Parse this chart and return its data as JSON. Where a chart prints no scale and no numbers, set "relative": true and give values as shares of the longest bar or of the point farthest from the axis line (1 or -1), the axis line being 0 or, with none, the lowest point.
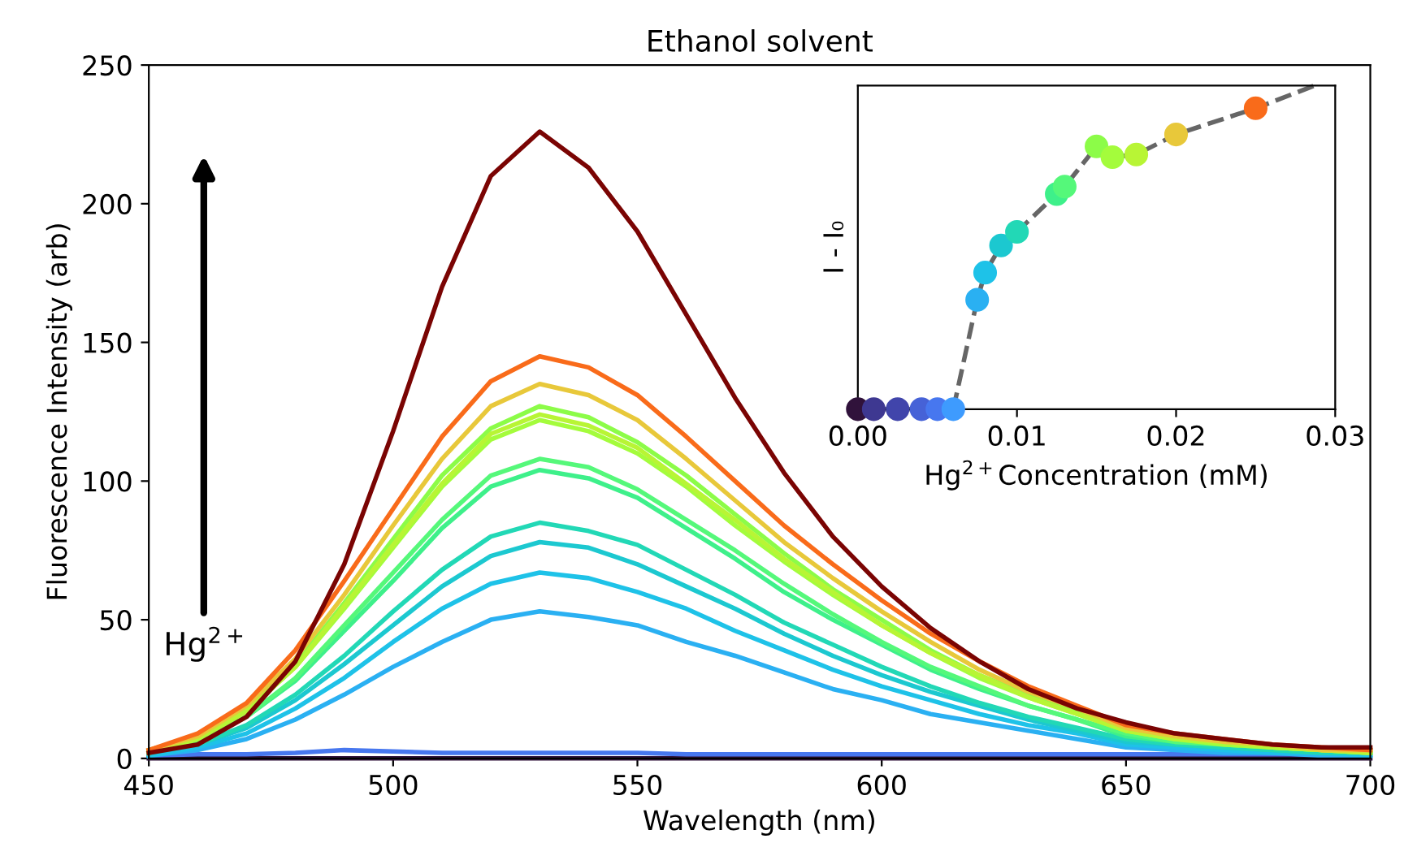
{
  "chart_data": [
    {
      "type": "line",
      "title": "Ethanol solvent",
      "xlabel": "Wavelength (nm)",
      "ylabel": "Fluorescence Intensity (arb)",
      "x": [
        450,
        460,
        470,
        480,
        490,
        500,
        510,
        520,
        530,
        540,
        550,
        560,
        570,
        580,
        590,
        600,
        610,
        620,
        630,
        640,
        650,
        660,
        670,
        680,
        690,
        700
      ],
      "xlim": [
        450,
        700
      ],
      "xticks": [
        450,
        500,
        550,
        600,
        650,
        700
      ],
      "ylim": [
        0,
        250
      ],
      "yticks": [
        0,
        50,
        100,
        150,
        200,
        250
      ],
      "grid": false,
      "legend": false,
      "annotations": [
        "Hg$^{2+}$"
      ],
      "series": [
        {
          "color": "#30123b",
          "values": [
            0,
            0,
            0,
            0,
            0,
            0,
            0,
            0,
            0,
            0,
            0,
            0,
            0,
            0,
            0,
            0,
            0,
            0,
            0,
            0,
            0,
            0,
            0,
            0,
            0,
            0
          ]
        },
        {
          "color": "#4777ef",
          "values": [
            1,
            1.5,
            1.5,
            2,
            3,
            2.5,
            2,
            2,
            2,
            2,
            2,
            1.5,
            1.5,
            1.5,
            1.5,
            1.5,
            1.5,
            1.5,
            1.5,
            1.5,
            1.5,
            1.5,
            1.5,
            1.5,
            1.5,
            1.5
          ]
        },
        {
          "color": "#2ab0f2",
          "values": [
            1,
            3,
            7,
            14,
            23,
            33,
            42,
            50,
            53,
            51,
            48,
            42,
            37,
            31,
            25,
            21,
            16,
            13,
            10,
            7,
            4,
            3,
            2,
            2,
            1,
            1
          ]
        },
        {
          "color": "#1ec2e8",
          "values": [
            1,
            4,
            9,
            18,
            29,
            42,
            54,
            63,
            67,
            65,
            60,
            54,
            46,
            39,
            32,
            26,
            21,
            16,
            12,
            9,
            5,
            4,
            3,
            2,
            2,
            1
          ]
        },
        {
          "color": "#1cc8d0",
          "values": [
            2,
            5,
            11,
            21,
            34,
            48,
            62,
            73,
            78,
            76,
            70,
            62,
            54,
            45,
            37,
            30,
            24,
            19,
            14,
            10,
            6,
            5,
            4,
            3,
            2,
            2
          ]
        },
        {
          "color": "#22d8b6",
          "values": [
            2,
            5,
            12,
            23,
            37,
            53,
            68,
            80,
            85,
            82,
            77,
            68,
            59,
            49,
            41,
            33,
            26,
            20,
            15,
            11,
            7,
            5,
            4,
            3,
            2,
            2
          ]
        },
        {
          "color": "#3ef08a",
          "values": [
            2,
            6,
            15,
            28,
            46,
            64,
            83,
            98,
            104,
            101,
            94,
            83,
            72,
            60,
            50,
            41,
            32,
            25,
            19,
            14,
            8,
            6,
            5,
            4,
            3,
            2
          ]
        },
        {
          "color": "#55f87a",
          "values": [
            2,
            6,
            15,
            29,
            48,
            67,
            86,
            102,
            108,
            105,
            97,
            86,
            75,
            63,
            52,
            42,
            33,
            26,
            19,
            14,
            9,
            6,
            5,
            4,
            3,
            2
          ]
        },
        {
          "color": "#8cfc48",
          "values": [
            3,
            8,
            18,
            34,
            56,
            79,
            102,
            119,
            127,
            123,
            114,
            102,
            88,
            74,
            61,
            50,
            39,
            30,
            23,
            17,
            10,
            8,
            6,
            4,
            3,
            3
          ]
        },
        {
          "color": "#a4fc3c",
          "values": [
            2,
            7,
            17,
            33,
            54,
            76,
            98,
            115,
            122,
            118,
            110,
            98,
            84,
            71,
            59,
            48,
            38,
            29,
            22,
            16,
            10,
            7,
            5,
            4,
            3,
            2
          ]
        },
        {
          "color": "#b8f535",
          "values": [
            2,
            7,
            17,
            33,
            55,
            77,
            99,
            117,
            124,
            120,
            112,
            99,
            86,
            72,
            60,
            48,
            38,
            30,
            22,
            16,
            10,
            7,
            6,
            4,
            3,
            2
          ]
        },
        {
          "color": "#e8c83a",
          "values": [
            3,
            8,
            19,
            36,
            59,
            84,
            108,
            127,
            135,
            131,
            122,
            108,
            93,
            78,
            65,
            53,
            42,
            32,
            24,
            18,
            11,
            8,
            6,
            5,
            3,
            3
          ]
        },
        {
          "color": "#f96b1a",
          "values": [
            3,
            9,
            20,
            39,
            64,
            90,
            116,
            136,
            145,
            141,
            131,
            116,
            100,
            84,
            70,
            57,
            45,
            35,
            26,
            19,
            12,
            9,
            7,
            5,
            4,
            3
          ]
        },
        {
          "color": "#7a0403",
          "values": [
            2,
            5,
            15,
            35,
            70,
            118,
            170,
            210,
            226,
            213,
            190,
            160,
            130,
            103,
            80,
            62,
            47,
            35,
            25,
            18,
            13,
            9,
            7,
            5,
            4,
            4
          ]
        }
      ]
    },
    {
      "type": "scatter",
      "xlabel": "Hg$^{2+}$Concentration (mM)",
      "ylabel": "I - I₀",
      "relative": true,
      "xlim": [
        0,
        0.03
      ],
      "xticks": [
        {
          "value": 0,
          "label": "0.00"
        },
        {
          "value": 0.01,
          "label": "0.01"
        },
        {
          "value": 0.02,
          "label": "0.02"
        },
        {
          "value": 0.03,
          "label": "0.03"
        }
      ],
      "grid": false,
      "legend": false,
      "series": [
        {
          "type": "line",
          "line_style": "dashed",
          "color": "#666666",
          "x": [
            0,
            0.001,
            0.0025,
            0.004,
            0.005,
            0.006,
            0.0075,
            0.008,
            0.009,
            0.01,
            0.0125,
            0.013,
            0.015,
            0.016,
            0.0175,
            0.02,
            0.025,
            0.0287
          ],
          "values": [
            0,
            0,
            0,
            0,
            0,
            0,
            0.338,
            0.422,
            0.506,
            0.548,
            0.665,
            0.688,
            0.812,
            0.779,
            0.787,
            0.849,
            0.93,
            1.0
          ]
        },
        {
          "type": "scatter",
          "marker": "circle",
          "x": [
            0,
            0.001,
            0.0025,
            0.004,
            0.005,
            0.006,
            0.0075,
            0.008,
            0.009,
            0.01,
            0.0125,
            0.013,
            0.015,
            0.016,
            0.0175,
            0.02,
            0.025
          ],
          "values": [
            0,
            0,
            0,
            0,
            0,
            0,
            0.338,
            0.422,
            0.506,
            0.548,
            0.665,
            0.688,
            0.812,
            0.779,
            0.787,
            0.849,
            0.93
          ],
          "colors": [
            "#30123b",
            "#3e3891",
            "#4145ab",
            "#4662d7",
            "#4777ef",
            "#3e9bfe",
            "#2ab0f2",
            "#1ec2e8",
            "#1cc8d0",
            "#22d8b6",
            "#3ef08a",
            "#55f87a",
            "#8cfc48",
            "#a4fc3c",
            "#b8f535",
            "#e8c83a",
            "#f96b1a"
          ]
        }
      ]
    }
  ]
}
